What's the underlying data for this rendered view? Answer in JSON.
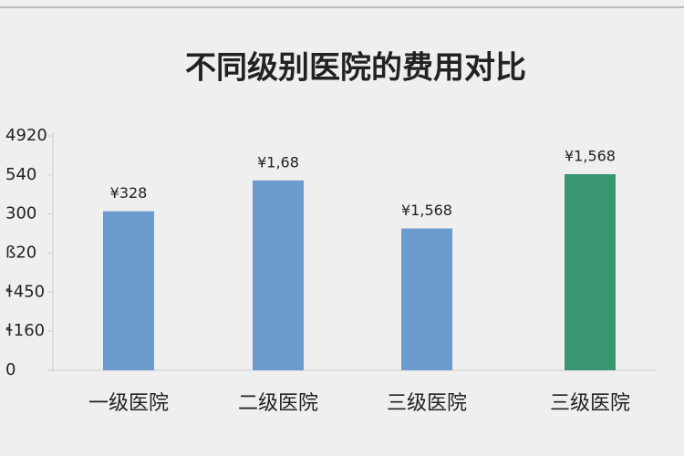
{
  "chart_data": {
    "type": "bar",
    "title": "不同级别医院的费用对比",
    "categories": [
      "一级医院",
      "二级医院",
      "三级医院",
      "三级医院"
    ],
    "values": [
      4.07,
      4.86,
      3.63,
      5.02
    ],
    "colors": [
      "#6b9bcc",
      "#6b9bcc",
      "#6b9bcc",
      "#3a9670"
    ],
    "annotations": [
      "¥328",
      "¥1,68",
      "¥1,568",
      "¥1,568"
    ],
    "ylim": [
      0,
      6
    ],
    "yticks": [
      0,
      {
        "value": 1,
        "label": "ɬ160"
      },
      {
        "value": 2,
        "label": "ɬ450"
      },
      {
        "value": 3,
        "label": "ß20"
      },
      {
        "value": 4,
        "label": "300"
      },
      {
        "value": 5,
        "label": "540"
      },
      {
        "value": 6,
        "label": "4920"
      }
    ]
  }
}
